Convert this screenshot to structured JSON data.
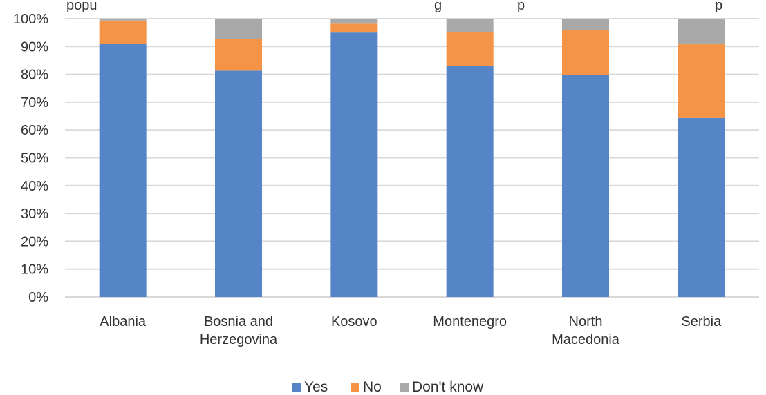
{
  "chart_data": {
    "type": "bar",
    "stacked": true,
    "title_fragments": [
      "popu",
      "g",
      "p",
      "p"
    ],
    "categories": [
      [
        "Albania"
      ],
      [
        "Bosnia and",
        "Herzegovina"
      ],
      [
        "Kosovo"
      ],
      [
        "Montenegro"
      ],
      [
        "North",
        "Macedonia"
      ],
      [
        "Serbia"
      ]
    ],
    "series": [
      {
        "name": "Yes",
        "color": "#5585C7",
        "values": [
          91,
          81.3,
          95,
          83,
          79.9,
          64.3
        ]
      },
      {
        "name": "No",
        "color": "#F59446",
        "values": [
          8.3,
          11.4,
          3.2,
          12.1,
          16,
          26.5
        ]
      },
      {
        "name": "Don't know",
        "color": "#A9A9A9",
        "values": [
          0.7,
          7.3,
          1.8,
          4.9,
          4.1,
          9.2
        ]
      }
    ],
    "ylim": [
      0,
      100
    ],
    "ytick_labels": [
      "0%",
      "10%",
      "20%",
      "30%",
      "40%",
      "50%",
      "60%",
      "70%",
      "80%",
      "90%",
      "100%"
    ],
    "grid": true,
    "legend_position": "bottom"
  }
}
